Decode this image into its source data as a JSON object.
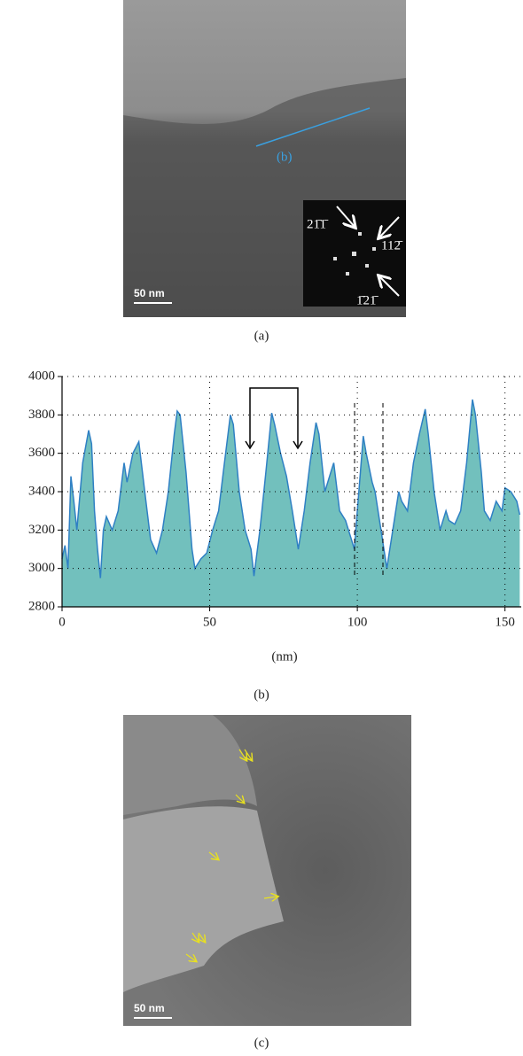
{
  "panels": {
    "a": {
      "caption": "(a)",
      "line_label": "(b)",
      "scale_bar": "50 nm",
      "indices": [
        "21̄1̄",
        "112̄",
        "1̄21̄"
      ]
    },
    "c": {
      "caption": "(c)",
      "scale_bar": "50 nm"
    }
  },
  "chart_data": {
    "type": "area",
    "caption": "(b)",
    "xlabel": "(nm)",
    "x": [
      0,
      1,
      2,
      3,
      4,
      5,
      7,
      9,
      10,
      11,
      12,
      13,
      14,
      15,
      17,
      19,
      21,
      22,
      24,
      26,
      28,
      30,
      32,
      34,
      36,
      38,
      39,
      40,
      42,
      44,
      45,
      47,
      49,
      51,
      53,
      55,
      57,
      58,
      60,
      62,
      64,
      65,
      67,
      69,
      71,
      72,
      74,
      76,
      78,
      80,
      82,
      84,
      86,
      87,
      89,
      91,
      92,
      94,
      96,
      98,
      99,
      100,
      102,
      103,
      105,
      106,
      108,
      110,
      112,
      114,
      115,
      117,
      119,
      121,
      123,
      124,
      126,
      128,
      130,
      131,
      133,
      135,
      137,
      139,
      140,
      142,
      143,
      145,
      147,
      149,
      150,
      152,
      154,
      155
    ],
    "values": [
      3050,
      3120,
      3000,
      3480,
      3350,
      3200,
      3550,
      3720,
      3650,
      3300,
      3100,
      2950,
      3200,
      3270,
      3200,
      3300,
      3550,
      3450,
      3600,
      3660,
      3400,
      3150,
      3080,
      3200,
      3400,
      3700,
      3820,
      3800,
      3500,
      3100,
      3000,
      3050,
      3080,
      3200,
      3300,
      3550,
      3800,
      3750,
      3400,
      3200,
      3100,
      2960,
      3200,
      3500,
      3810,
      3750,
      3600,
      3480,
      3300,
      3100,
      3300,
      3550,
      3760,
      3700,
      3400,
      3500,
      3550,
      3300,
      3250,
      3150,
      3100,
      3300,
      3690,
      3600,
      3450,
      3400,
      3200,
      3000,
      3200,
      3400,
      3350,
      3300,
      3550,
      3700,
      3830,
      3700,
      3400,
      3200,
      3300,
      3250,
      3230,
      3300,
      3550,
      3880,
      3800,
      3500,
      3300,
      3250,
      3350,
      3300,
      3420,
      3400,
      3350,
      3280
    ],
    "color": "#72c0bd",
    "line_color": "#2f80c4",
    "xlim": [
      0,
      155.5
    ],
    "ylim": [
      2800,
      4000
    ],
    "xticks": [
      0,
      50,
      100,
      150
    ],
    "yticks": [
      2800,
      3000,
      3200,
      3400,
      3600,
      3800,
      4000
    ],
    "grid": true
  }
}
